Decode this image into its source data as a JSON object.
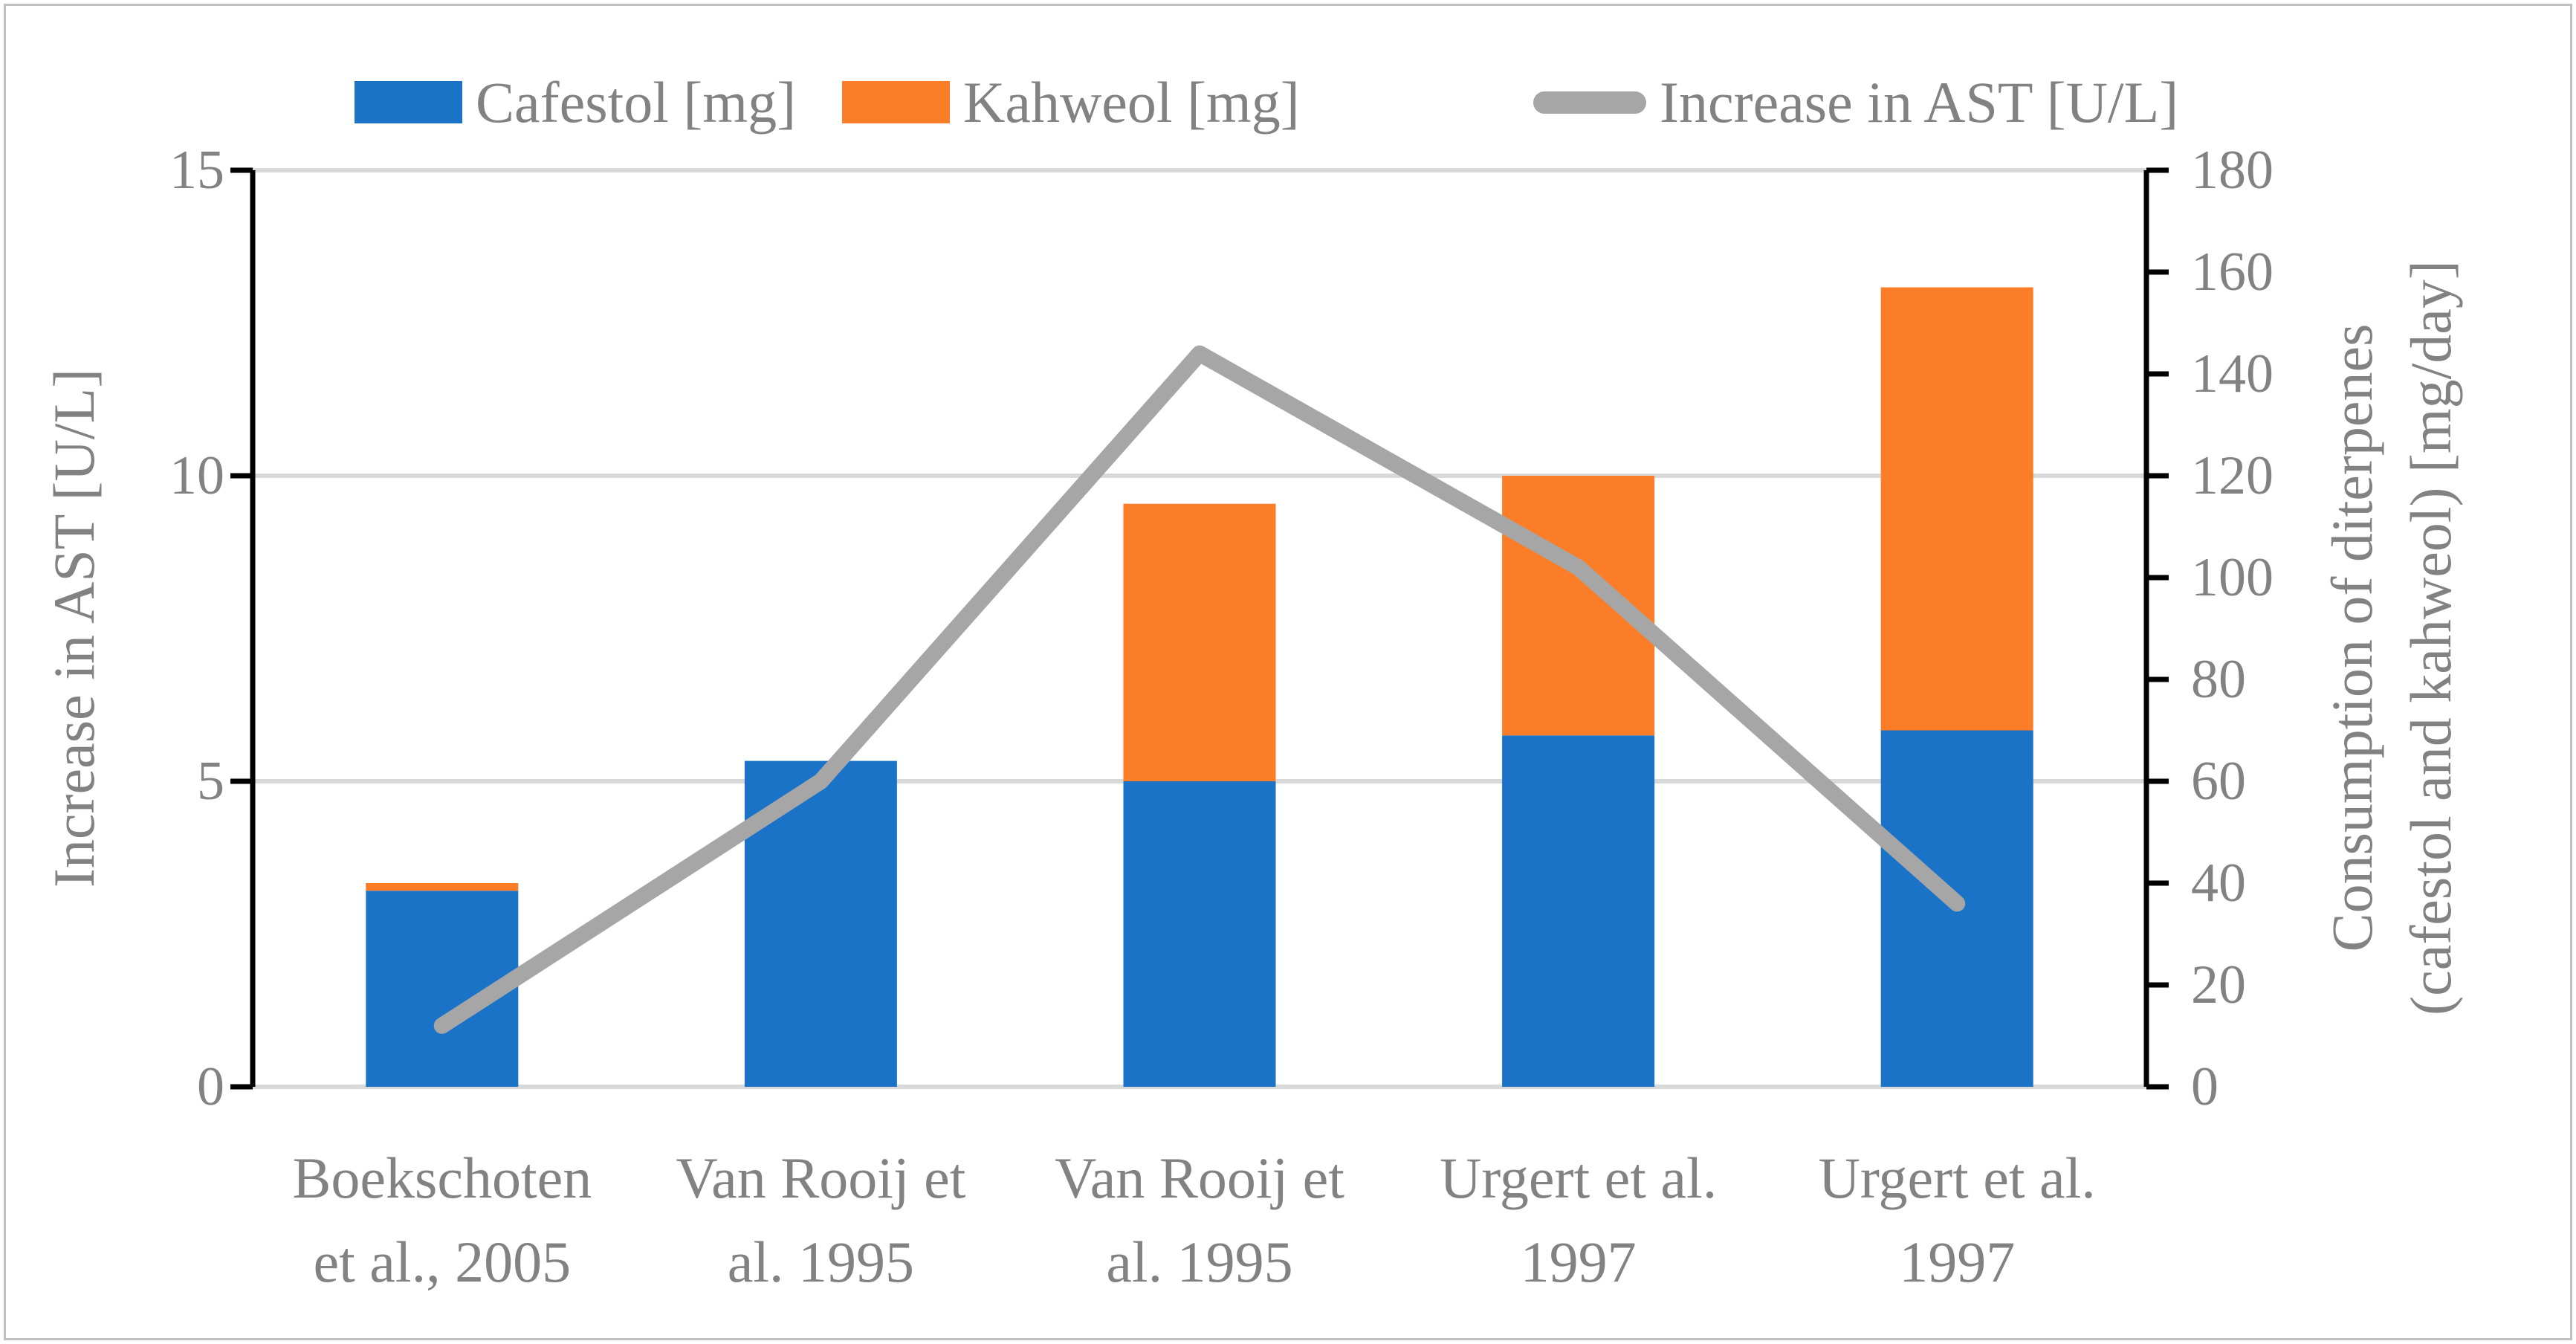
{
  "figure": {
    "background": "#FFFFFF",
    "border_color": "#BFBFBF",
    "text_color": "#828282",
    "axis_color": "#000000",
    "gridline_color": "#D9D9D9",
    "legend": [
      {
        "label": "Cafestol [mg]",
        "swatch": "square",
        "color": "#1B73C8"
      },
      {
        "label": "Kahweol [mg]",
        "swatch": "square",
        "color": "#FC7D27"
      },
      {
        "label": "Increase in AST [U/L]",
        "swatch": "line",
        "color": "#A6A6A6"
      }
    ],
    "left_axis": {
      "title": "Increase in AST [U/L]",
      "min": 0,
      "max": 15,
      "ticks": [
        0,
        5,
        10,
        15
      ]
    },
    "right_axis": {
      "title_line1": "Consumption of diterpenes",
      "title_line2": "(cafestol and kahweol) [mg/day]",
      "min": 0,
      "max": 180,
      "ticks": [
        0,
        20,
        40,
        60,
        80,
        100,
        120,
        140,
        160,
        180
      ]
    }
  },
  "chart_data": {
    "type": "combo: stacked-bar + line",
    "title": "",
    "xlabel": "",
    "left_ylabel": "Increase in AST [U/L]",
    "right_ylabel": "Consumption of diterpenes (cafestol and kahweol) [mg/day]",
    "left_ylim": [
      0,
      15
    ],
    "right_ylim": [
      0,
      180
    ],
    "grid": "horizontal gridlines at left-axis ticks 0,5,10,15",
    "legend_position": "top-center",
    "categories": [
      "Boekschoten et al., 2005",
      "Van Rooij et al. 1995",
      "Van Rooij et al. 1995",
      "Urgert et al. 1997",
      "Urgert et al. 1997"
    ],
    "category_lines": [
      [
        "Boekschoten",
        "et al., 2005"
      ],
      [
        "Van Rooij et",
        "al. 1995"
      ],
      [
        "Van Rooij et",
        "al. 1995"
      ],
      [
        "Urgert et al.",
        "1997"
      ],
      [
        "Urgert et al.",
        "1997"
      ]
    ],
    "series": [
      {
        "name": "Cafestol [mg]",
        "type": "bar",
        "stacked": true,
        "axis": "right",
        "color": "#1B73C8",
        "values": [
          38.5,
          64,
          60,
          69,
          70
        ]
      },
      {
        "name": "Kahweol [mg]",
        "type": "bar",
        "stacked": true,
        "axis": "right",
        "color": "#FC7D27",
        "values": [
          1.5,
          0,
          54.5,
          51,
          87
        ]
      },
      {
        "name": "Increase in AST [U/L]",
        "type": "line",
        "axis": "left",
        "color": "#A6A6A6",
        "values": [
          1,
          5,
          12,
          8.5,
          3
        ]
      }
    ],
    "stacked_bar_totals_mg_per_day": [
      40,
      64,
      114.5,
      120,
      157
    ]
  }
}
